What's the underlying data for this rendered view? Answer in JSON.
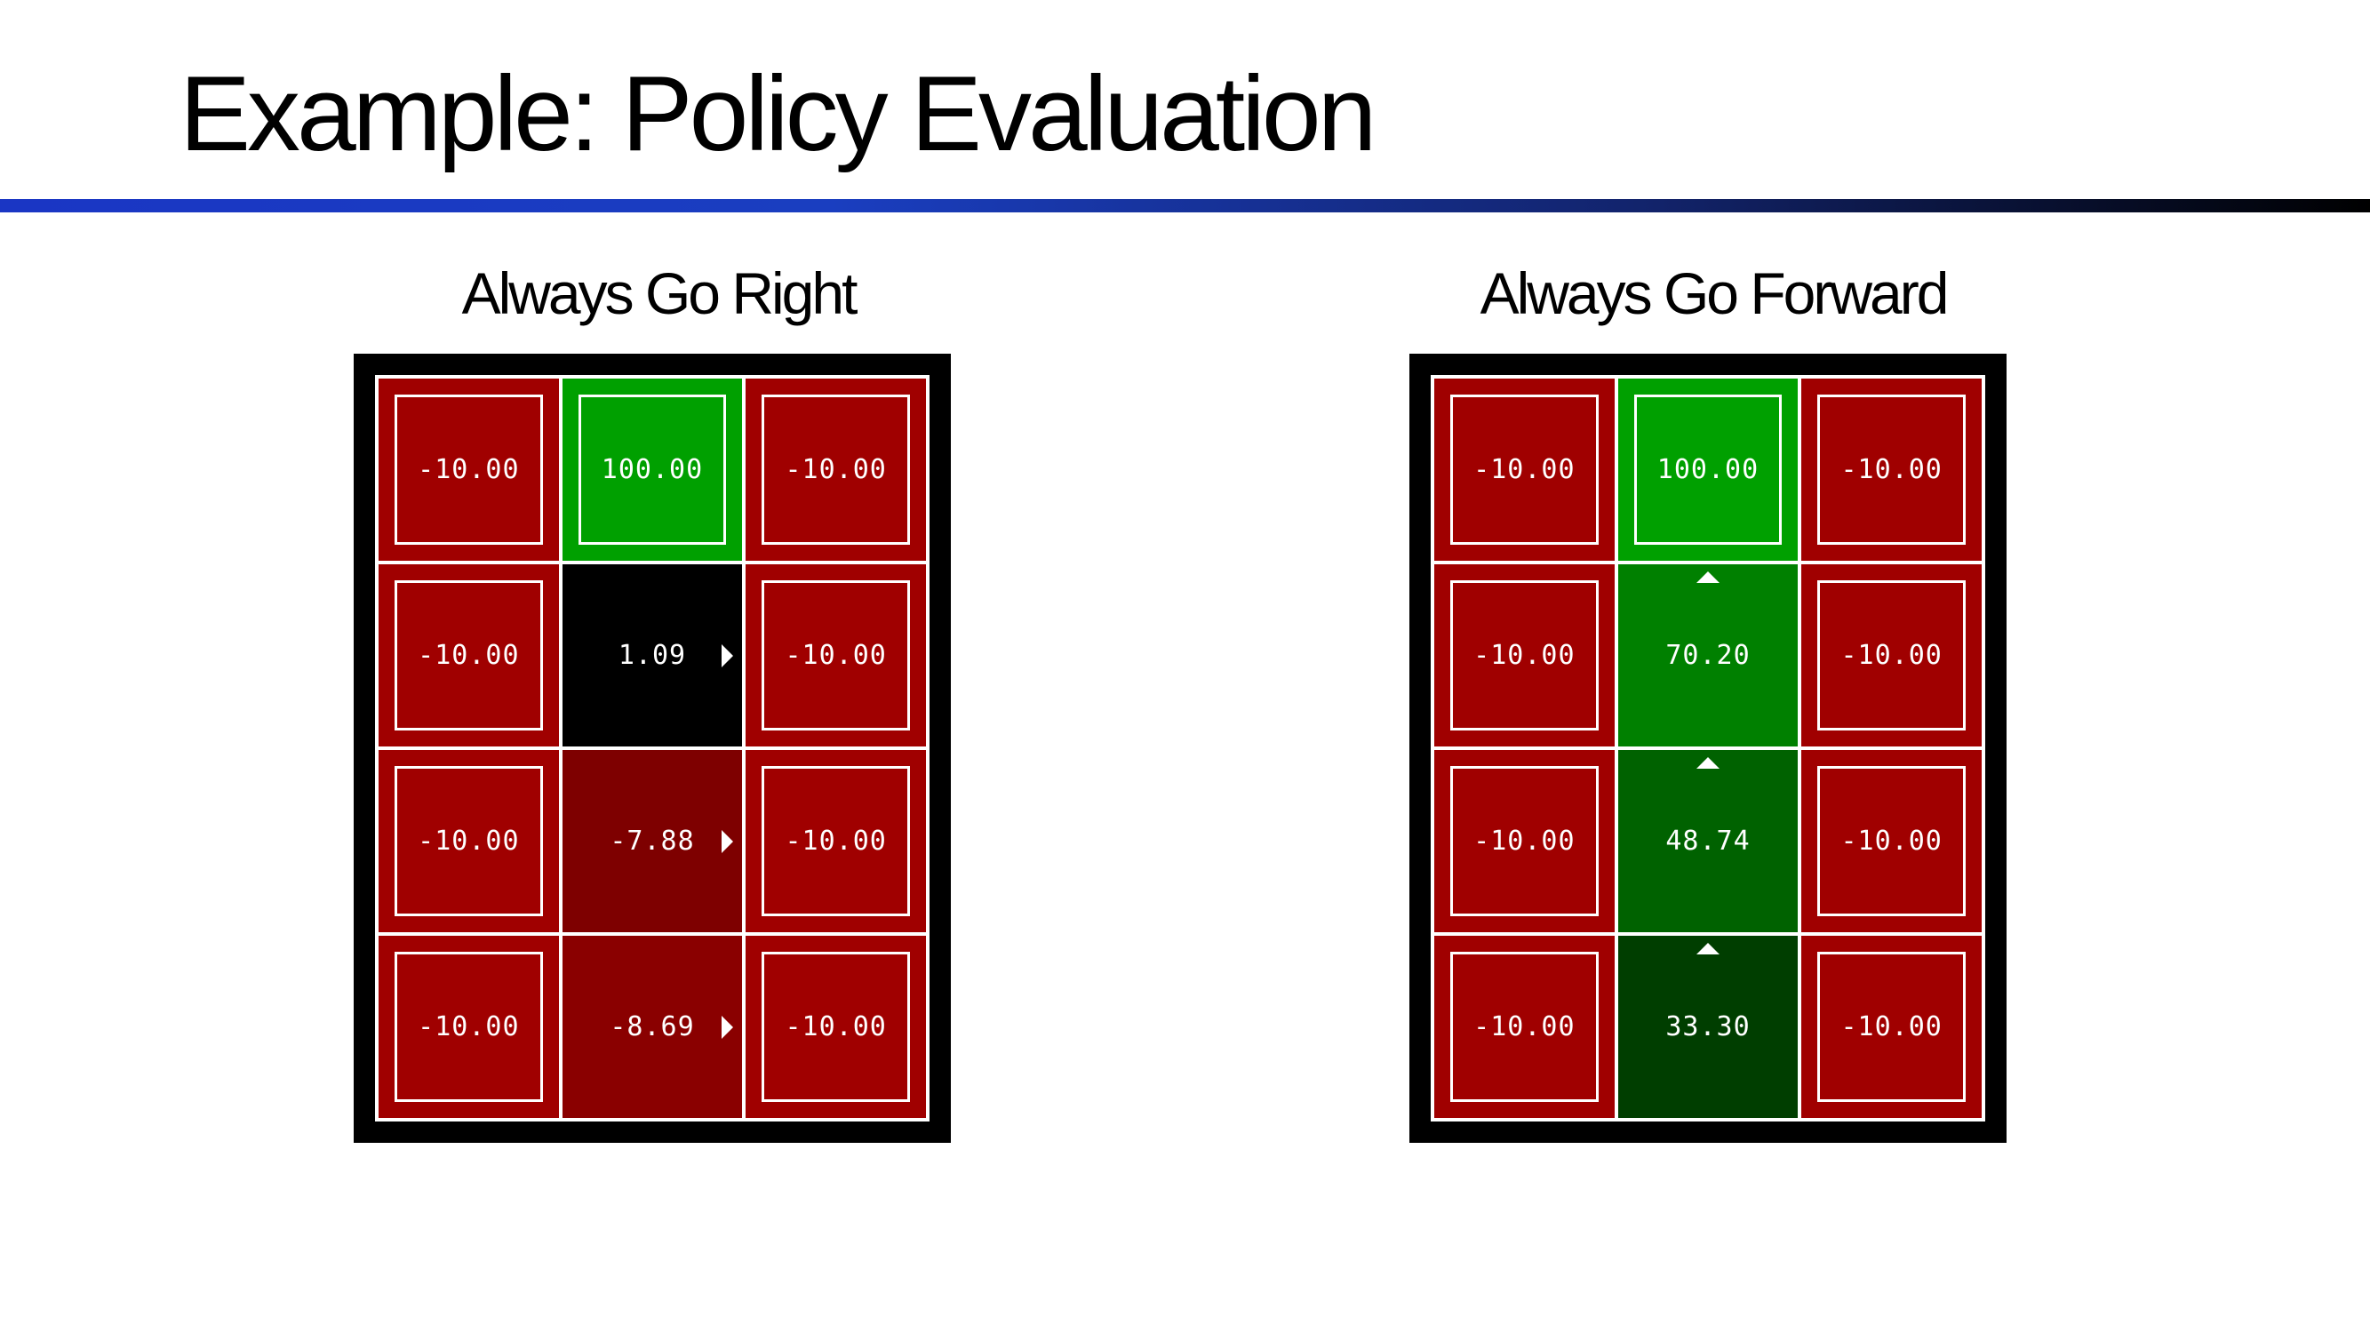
{
  "title": "Example: Policy Evaluation",
  "colors": {
    "exit_red": "#a00000",
    "goal_green": "#00a000",
    "rule_start": "#1a36c4",
    "rule_end": "#000000"
  },
  "panels": [
    {
      "caption": "Always Go Right",
      "cells": [
        {
          "value": "-10.00",
          "terminal": true,
          "color": "#a00000",
          "arrow": "none"
        },
        {
          "value": "100.00",
          "terminal": true,
          "color": "#00a000",
          "arrow": "none"
        },
        {
          "value": "-10.00",
          "terminal": true,
          "color": "#a00000",
          "arrow": "none"
        },
        {
          "value": "-10.00",
          "terminal": true,
          "color": "#a00000",
          "arrow": "none"
        },
        {
          "value": "1.09",
          "terminal": false,
          "color": "#000000",
          "arrow": "right"
        },
        {
          "value": "-10.00",
          "terminal": true,
          "color": "#a00000",
          "arrow": "none"
        },
        {
          "value": "-10.00",
          "terminal": true,
          "color": "#a00000",
          "arrow": "none"
        },
        {
          "value": "-7.88",
          "terminal": false,
          "color": "#7e0000",
          "arrow": "right"
        },
        {
          "value": "-10.00",
          "terminal": true,
          "color": "#a00000",
          "arrow": "none"
        },
        {
          "value": "-10.00",
          "terminal": true,
          "color": "#a00000",
          "arrow": "none"
        },
        {
          "value": "-8.69",
          "terminal": false,
          "color": "#8a0000",
          "arrow": "right"
        },
        {
          "value": "-10.00",
          "terminal": true,
          "color": "#a00000",
          "arrow": "none"
        }
      ]
    },
    {
      "caption": "Always Go Forward",
      "cells": [
        {
          "value": "-10.00",
          "terminal": true,
          "color": "#a00000",
          "arrow": "none"
        },
        {
          "value": "100.00",
          "terminal": true,
          "color": "#00a000",
          "arrow": "none"
        },
        {
          "value": "-10.00",
          "terminal": true,
          "color": "#a00000",
          "arrow": "none"
        },
        {
          "value": "-10.00",
          "terminal": true,
          "color": "#a00000",
          "arrow": "none"
        },
        {
          "value": "70.20",
          "terminal": false,
          "color": "#008000",
          "arrow": "up"
        },
        {
          "value": "-10.00",
          "terminal": true,
          "color": "#a00000",
          "arrow": "none"
        },
        {
          "value": "-10.00",
          "terminal": true,
          "color": "#a00000",
          "arrow": "none"
        },
        {
          "value": "48.74",
          "terminal": false,
          "color": "#006200",
          "arrow": "up"
        },
        {
          "value": "-10.00",
          "terminal": true,
          "color": "#a00000",
          "arrow": "none"
        },
        {
          "value": "-10.00",
          "terminal": true,
          "color": "#a00000",
          "arrow": "none"
        },
        {
          "value": "33.30",
          "terminal": false,
          "color": "#003e00",
          "arrow": "up"
        },
        {
          "value": "-10.00",
          "terminal": true,
          "color": "#a00000",
          "arrow": "none"
        }
      ]
    }
  ]
}
